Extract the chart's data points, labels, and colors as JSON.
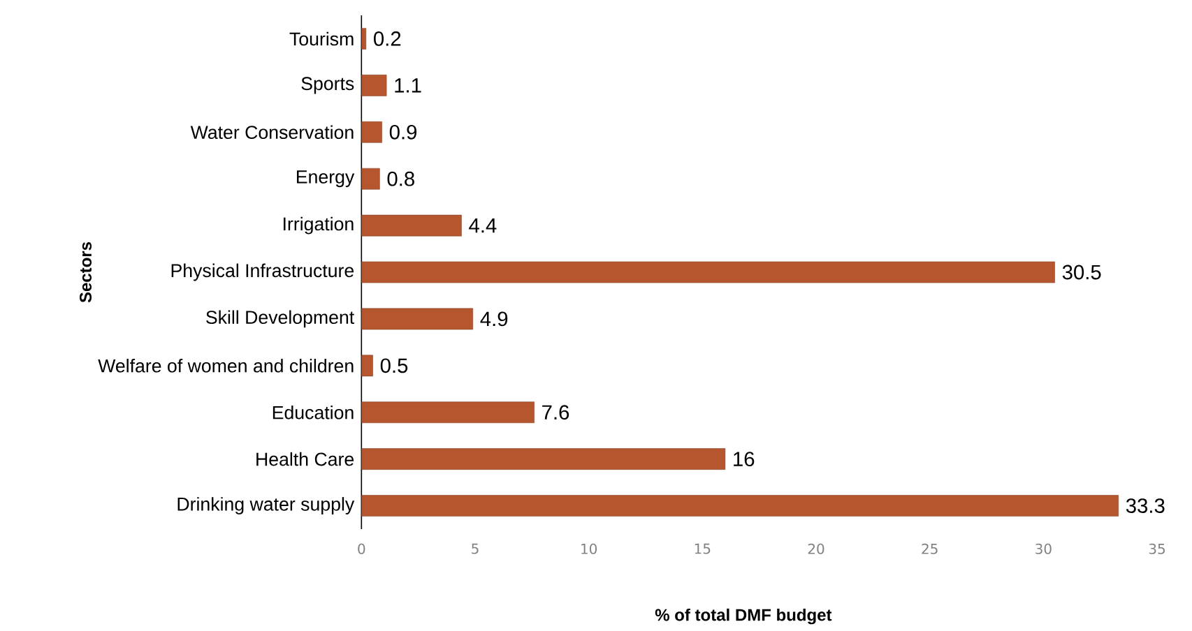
{
  "chart_data": {
    "type": "bar",
    "orientation": "horizontal",
    "xlabel": "%  of total DMF budget",
    "ylabel": "Sectors",
    "categories": [
      "Tourism",
      "Sports",
      "Water Conservation",
      "Energy",
      "Irrigation",
      "Physical Infrastructure",
      "Skill Development",
      "Welfare of women and children",
      "Education",
      "Health Care",
      "Drinking water supply"
    ],
    "values": [
      0.2,
      1.1,
      0.9,
      0.8,
      4.4,
      30.5,
      4.9,
      0.5,
      7.6,
      16,
      33.3
    ],
    "color": "#b5562f",
    "xlim": [
      0,
      35
    ],
    "xticks": [
      0,
      5,
      10,
      15,
      20,
      25,
      30,
      35
    ],
    "data_labels": true,
    "grid": false
  }
}
